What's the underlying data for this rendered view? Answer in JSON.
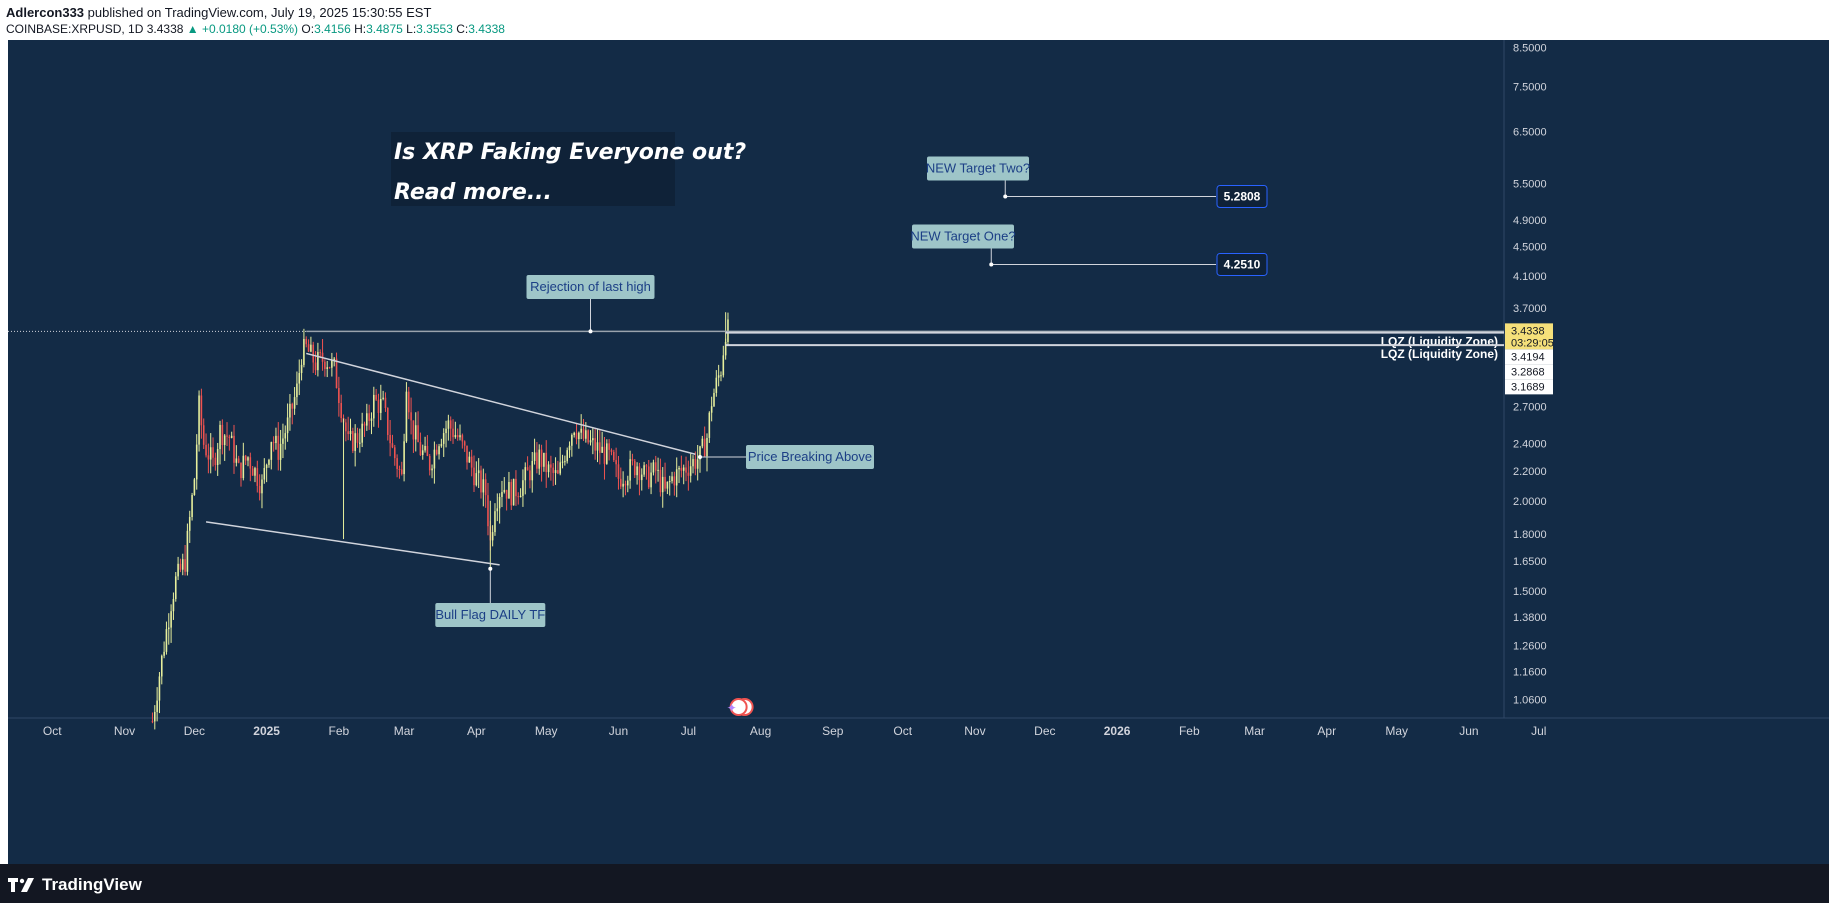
{
  "header": {
    "author": "Adlercon333",
    "published_text": " published on TradingView.com, July 19, 2025 15:30:55 EST",
    "symbol": "COINBASE:XRPUSD, 1D",
    "last": "3.4338",
    "change": "▲ +0.0180 (+0.53%)",
    "o_label": "O:",
    "o": "3.4156",
    "h_label": "H:",
    "h": "3.4875",
    "l_label": "L:",
    "l": "3.3553",
    "c_label": "C:",
    "c": "3.4338"
  },
  "footer": {
    "logo_text": "TradingView"
  },
  "colors": {
    "bg": "#132b46",
    "up": "#e6ee9c",
    "down": "#ef5350",
    "line": "#d1d4dc",
    "label_bg": "#9ec5c8",
    "label_text": "#1c3f86",
    "price_tag": "#f5e07a"
  },
  "chart_data": {
    "type": "candlestick",
    "symbol": "COINBASE:XRPUSD",
    "interval": "1D",
    "scale": "log",
    "ylim": [
      1.0,
      8.7
    ],
    "x_ticks": [
      "Oct",
      "Nov",
      "Dec",
      "2025",
      "Feb",
      "Mar",
      "Apr",
      "May",
      "Jun",
      "Jul",
      "Aug",
      "Sep",
      "Oct",
      "Nov",
      "Dec",
      "2026",
      "Feb",
      "Mar",
      "Apr",
      "May",
      "Jun",
      "Jul"
    ],
    "y_ticks": [
      "8.5000",
      "7.5000",
      "6.5000",
      "5.5000",
      "4.9000",
      "4.5000",
      "4.1000",
      "3.7000",
      "2.7000",
      "2.4000",
      "2.2000",
      "2.0000",
      "1.8000",
      "1.6500",
      "1.5000",
      "1.3800",
      "1.2600",
      "1.1600",
      "1.0600"
    ],
    "price_path": [
      [
        "2024-11-13",
        0.99
      ],
      [
        "2024-11-16",
        1.15
      ],
      [
        "2024-11-21",
        1.45
      ],
      [
        "2024-11-23",
        1.55
      ],
      [
        "2024-11-27",
        1.65
      ],
      [
        "2024-12-01",
        2.15
      ],
      [
        "2024-12-03",
        2.7
      ],
      [
        "2024-12-05",
        2.4
      ],
      [
        "2024-12-09",
        2.25
      ],
      [
        "2024-12-12",
        2.5
      ],
      [
        "2024-12-16",
        2.45
      ],
      [
        "2024-12-20",
        2.2
      ],
      [
        "2024-12-24",
        2.3
      ],
      [
        "2024-12-30",
        2.1
      ],
      [
        "2025-01-03",
        2.45
      ],
      [
        "2025-01-06",
        2.35
      ],
      [
        "2025-01-10",
        2.55
      ],
      [
        "2025-01-14",
        2.85
      ],
      [
        "2025-01-16",
        3.2
      ],
      [
        "2025-01-18",
        3.25
      ],
      [
        "2025-01-22",
        3.1
      ],
      [
        "2025-01-26",
        3.15
      ],
      [
        "2025-01-30",
        3.05
      ],
      [
        "2025-02-03",
        2.6
      ],
      [
        "2025-02-05",
        2.4
      ],
      [
        "2025-02-09",
        2.45
      ],
      [
        "2025-02-13",
        2.55
      ],
      [
        "2025-02-16",
        2.75
      ],
      [
        "2025-02-20",
        2.7
      ],
      [
        "2025-02-24",
        2.35
      ],
      [
        "2025-02-28",
        2.15
      ],
      [
        "2025-03-02",
        2.95
      ],
      [
        "2025-03-04",
        2.55
      ],
      [
        "2025-03-08",
        2.35
      ],
      [
        "2025-03-12",
        2.25
      ],
      [
        "2025-03-16",
        2.45
      ],
      [
        "2025-03-20",
        2.55
      ],
      [
        "2025-03-24",
        2.45
      ],
      [
        "2025-03-28",
        2.3
      ],
      [
        "2025-04-01",
        2.15
      ],
      [
        "2025-04-05",
        2.05
      ],
      [
        "2025-04-07",
        1.75
      ],
      [
        "2025-04-09",
        2.0
      ],
      [
        "2025-04-12",
        2.1
      ],
      [
        "2025-04-16",
        2.05
      ],
      [
        "2025-04-20",
        2.1
      ],
      [
        "2025-04-24",
        2.2
      ],
      [
        "2025-04-28",
        2.3
      ],
      [
        "2025-05-02",
        2.2
      ],
      [
        "2025-05-06",
        2.15
      ],
      [
        "2025-05-10",
        2.4
      ],
      [
        "2025-05-13",
        2.55
      ],
      [
        "2025-05-16",
        2.45
      ],
      [
        "2025-05-20",
        2.4
      ],
      [
        "2025-05-24",
        2.35
      ],
      [
        "2025-05-28",
        2.3
      ],
      [
        "2025-06-01",
        2.15
      ],
      [
        "2025-06-05",
        2.2
      ],
      [
        "2025-06-09",
        2.25
      ],
      [
        "2025-06-13",
        2.15
      ],
      [
        "2025-06-17",
        2.2
      ],
      [
        "2025-06-21",
        2.05
      ],
      [
        "2025-06-24",
        2.15
      ],
      [
        "2025-06-28",
        2.2
      ],
      [
        "2025-07-02",
        2.25
      ],
      [
        "2025-07-06",
        2.3
      ],
      [
        "2025-07-09",
        2.45
      ],
      [
        "2025-07-11",
        2.75
      ],
      [
        "2025-07-13",
        2.9
      ],
      [
        "2025-07-15",
        3.05
      ],
      [
        "2025-07-17",
        3.45
      ],
      [
        "2025-07-19",
        3.43
      ]
    ],
    "horizontal_lines": [
      {
        "price": 3.4338,
        "label": ""
      },
      {
        "price": 3.4194,
        "label": "LQZ (Liquidity Zone)"
      },
      {
        "price": 3.2868,
        "label": "LQZ (Liquidity Zone)"
      }
    ],
    "price_labels": {
      "last": "3.4338",
      "countdown": "03:29:05",
      "lqz1": "3.4194",
      "lqz2": "3.2868",
      "low": "3.1689"
    },
    "targets": [
      {
        "label": "NEW Target Two?",
        "price": 5.2808,
        "value_label": "5.2808"
      },
      {
        "label": "NEW Target One?",
        "price": 4.251,
        "value_label": "4.2510"
      }
    ],
    "annotations": {
      "headline1": "Is XRP Faking Everyone out?",
      "headline2": "Read more...",
      "rejection": "Rejection of last high",
      "breaking": "Price Breaking Above",
      "bullflag": "Bull Flag DAILY TF"
    },
    "trendlines": [
      {
        "from": [
          "2025-01-18",
          3.2
        ],
        "to": [
          "2025-07-04",
          2.32
        ]
      },
      {
        "from": [
          "2024-12-06",
          1.87
        ],
        "to": [
          "2025-04-11",
          1.63
        ]
      }
    ]
  }
}
